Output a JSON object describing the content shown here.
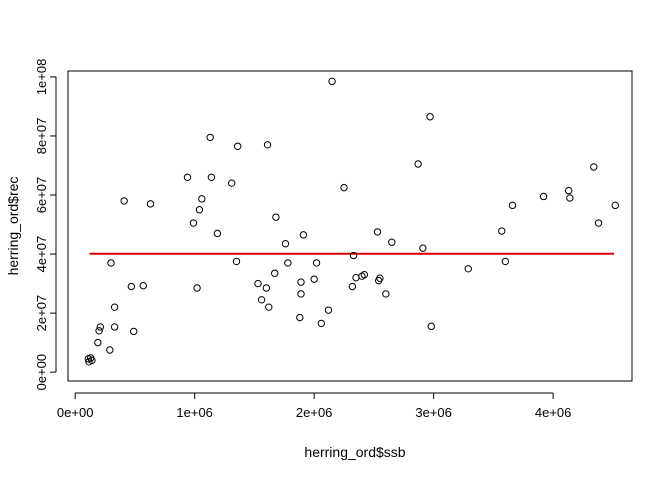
{
  "chart_data": {
    "type": "scatter",
    "title": "",
    "xlabel": "herring_ord$ssb",
    "ylabel": "herring_ord$rec",
    "xlim": [
      -60000,
      4660000
    ],
    "ylim": [
      -3000000,
      102000000
    ],
    "xticks": [
      0,
      1000000,
      2000000,
      3000000,
      4000000
    ],
    "xtick_labels": [
      "0e+00",
      "1e+06",
      "2e+06",
      "3e+06",
      "4e+06"
    ],
    "yticks": [
      0,
      20000000,
      40000000,
      60000000,
      80000000,
      100000000
    ],
    "ytick_labels": [
      "0e+00",
      "2e+07",
      "4e+07",
      "6e+07",
      "8e+07",
      "1e+08"
    ],
    "grid": false,
    "legend": "none",
    "point_color": "#000000",
    "line_color": "#e00000",
    "hline": {
      "y": 40100000,
      "x": [
        120000,
        4510000
      ]
    },
    "series": [
      {
        "x": [
          110000,
          115000,
          130000,
          140000,
          190000,
          200000,
          210000,
          290000,
          300000,
          330000,
          330000,
          410000,
          470000,
          490000,
          570000,
          630000,
          940000,
          990000,
          1020000,
          1040000,
          1060000,
          1130000,
          1140000,
          1190000,
          1310000,
          1350000,
          1360000,
          1530000,
          1560000,
          1600000,
          1610000,
          1620000,
          1670000,
          1680000,
          1760000,
          1780000,
          1880000,
          1890000,
          1890000,
          1910000,
          2000000,
          2020000,
          2060000,
          2120000,
          2150000,
          2250000,
          2320000,
          2330000,
          2350000,
          2400000,
          2420000,
          2530000,
          2540000,
          2550000,
          2600000,
          2650000,
          2870000,
          2910000,
          2970000,
          2980000,
          3290000,
          3570000,
          3600000,
          3660000,
          3920000,
          4130000,
          4140000,
          4340000,
          4380000,
          4520000
        ],
        "y": [
          4500000,
          3500000,
          4800000,
          4000000,
          10000000,
          14000000,
          15300000,
          7500000,
          37000000,
          22000000,
          15300000,
          58000000,
          29000000,
          13800000,
          29300000,
          57000000,
          66000000,
          50500000,
          28500000,
          55000000,
          58700000,
          79500000,
          66000000,
          47000000,
          64000000,
          37500000,
          76500000,
          30000000,
          24500000,
          28500000,
          77000000,
          22000000,
          33500000,
          52500000,
          43500000,
          37000000,
          18500000,
          30500000,
          26500000,
          46500000,
          31500000,
          37000000,
          16500000,
          21000000,
          98500000,
          62500000,
          29000000,
          39500000,
          32000000,
          32500000,
          33000000,
          47500000,
          31000000,
          31800000,
          26500000,
          44000000,
          70500000,
          42000000,
          86500000,
          15500000,
          35000000,
          47800000,
          37500000,
          56500000,
          59500000,
          61500000,
          59000000,
          69500000,
          50500000,
          56500000
        ]
      }
    ]
  }
}
